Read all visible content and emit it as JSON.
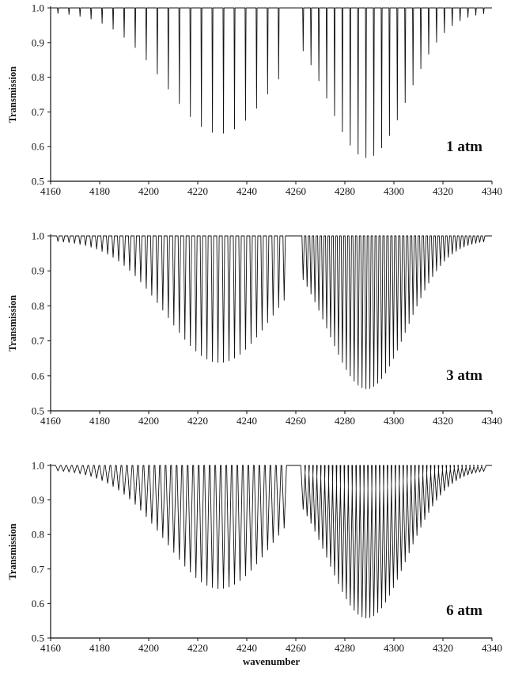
{
  "chart_data": [
    {
      "type": "line",
      "annotation": "1 atm",
      "xlabel": "",
      "ylabel": "Transmission",
      "xlim": [
        4160,
        4340
      ],
      "ylim": [
        0.5,
        1.0
      ],
      "xticks": [
        "4160",
        "4180",
        "4200",
        "4220",
        "4240",
        "4260",
        "4280",
        "4300",
        "4320",
        "4340"
      ],
      "yticks": [
        "0.5",
        "0.6",
        "0.7",
        "0.8",
        "0.9",
        "1.0"
      ],
      "grid": false,
      "bands": [
        {
          "x_start": 4163,
          "x_end": 4256,
          "spacing": 4.5,
          "dip_center": 4229,
          "dip_sigma": 22,
          "min_transmission": 0.65
        },
        {
          "x_start": 4263,
          "x_end": 4338,
          "spacing": 3.2,
          "dip_center": 4289,
          "dip_sigma": 16,
          "min_transmission": 0.58
        }
      ],
      "line_width": 0.4,
      "baseline": 1.0
    },
    {
      "type": "line",
      "annotation": "3 atm",
      "xlabel": "",
      "ylabel": "Transmission",
      "xlim": [
        4160,
        4340
      ],
      "ylim": [
        0.5,
        1.0
      ],
      "xticks": [
        "4160",
        "4180",
        "4200",
        "4220",
        "4240",
        "4260",
        "4280",
        "4300",
        "4320",
        "4340"
      ],
      "yticks": [
        "0.5",
        "0.6",
        "0.7",
        "0.8",
        "0.9",
        "1.0"
      ],
      "grid": false,
      "bands": [
        {
          "x_start": 4163,
          "x_end": 4256,
          "spacing": 2.25,
          "dip_center": 4229,
          "dip_sigma": 22,
          "min_transmission": 0.65
        },
        {
          "x_start": 4263,
          "x_end": 4338,
          "spacing": 1.6,
          "dip_center": 4289,
          "dip_sigma": 16,
          "min_transmission": 0.575
        }
      ],
      "line_width": 1.0,
      "baseline": 1.0
    },
    {
      "type": "line",
      "annotation": "6 atm",
      "xlabel": "wavenumber",
      "ylabel": "Transmission",
      "xlim": [
        4160,
        4340
      ],
      "ylim": [
        0.5,
        1.0
      ],
      "xticks": [
        "4160",
        "4180",
        "4200",
        "4220",
        "4240",
        "4260",
        "4280",
        "4300",
        "4320",
        "4340"
      ],
      "yticks": [
        "0.5",
        "0.6",
        "0.7",
        "0.8",
        "0.9",
        "1.0"
      ],
      "grid": false,
      "bands": [
        {
          "x_start": 4163,
          "x_end": 4256,
          "spacing": 2.25,
          "dip_center": 4229,
          "dip_sigma": 22,
          "min_transmission": 0.655
        },
        {
          "x_start": 4263,
          "x_end": 4338,
          "spacing": 1.6,
          "dip_center": 4289,
          "dip_sigma": 16,
          "min_transmission": 0.57
        }
      ],
      "line_width": 1.9,
      "baseline": 1.0
    }
  ]
}
